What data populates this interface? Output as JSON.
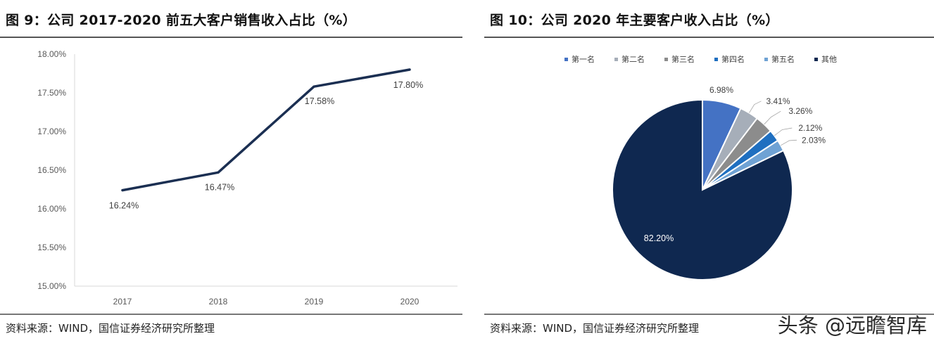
{
  "left": {
    "title": "图 9：公司 2017-2020 前五大客户销售收入占比（%）",
    "source": "资料来源：WIND，国信证券经济研究所整理"
  },
  "right": {
    "title": "图 10：公司 2020 年主要客户收入占比（%）",
    "source": "资料来源：WIND，国信证券经济研究所整理"
  },
  "watermark": "头条 @远瞻智库",
  "chart_data": [
    {
      "type": "line",
      "title": "公司 2017-2020 前五大客户销售收入占比（%）",
      "categories": [
        "2017",
        "2018",
        "2019",
        "2020"
      ],
      "values": [
        16.24,
        16.47,
        17.58,
        17.8
      ],
      "labels": [
        "16.24%",
        "16.47%",
        "17.58%",
        "17.80%"
      ],
      "yticks": [
        "18.00%",
        "17.50%",
        "17.00%",
        "16.50%",
        "16.00%",
        "15.50%",
        "15.00%"
      ],
      "ytick_values": [
        18.0,
        17.5,
        17.0,
        16.5,
        16.0,
        15.5,
        15.0
      ],
      "ylim": [
        15.0,
        18.0
      ],
      "xlabel": "",
      "ylabel": "",
      "grid": false,
      "color": "#1b2f52"
    },
    {
      "type": "pie",
      "title": "公司 2020 年主要客户收入占比（%）",
      "legend_position": "top",
      "slices": [
        {
          "name": "第一名",
          "value": 6.98,
          "label": "6.98%",
          "color": "#4472c4"
        },
        {
          "name": "第二名",
          "value": 3.41,
          "label": "3.41%",
          "color": "#a6aeb9"
        },
        {
          "name": "第三名",
          "value": 3.26,
          "label": "3.26%",
          "color": "#8c8c8c"
        },
        {
          "name": "第四名",
          "value": 2.12,
          "label": "2.12%",
          "color": "#1f6fc0"
        },
        {
          "name": "第五名",
          "value": 2.03,
          "label": "2.03%",
          "color": "#6fa2d4"
        },
        {
          "name": "其他",
          "value": 82.2,
          "label": "82.20%",
          "color": "#0f2850"
        }
      ]
    }
  ]
}
